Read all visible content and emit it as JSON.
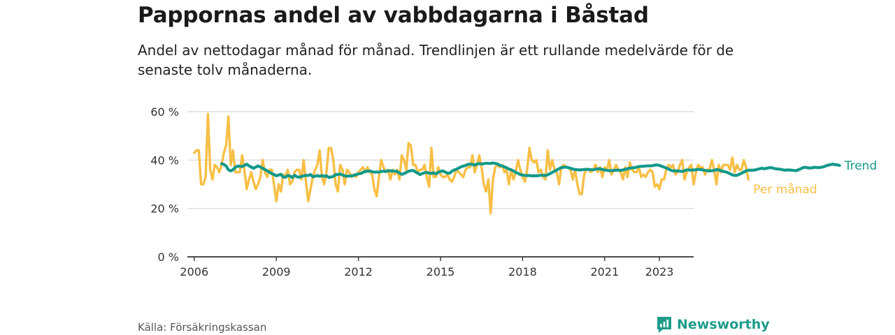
{
  "header": {
    "title": "Pappornas andel av vabbdagarna i Båstad",
    "subtitle": "Andel av nettodagar månad för månad. Trendlinjen är ett rullande medelvärde för de senaste tolv månaderna."
  },
  "footer": {
    "source": "Källa: Försäkringskassan",
    "brand": "Newsworthy"
  },
  "colors": {
    "monthly": "#f7bf45",
    "trend": "#13998a",
    "grid": "#d6d6d6",
    "axis": "#333333",
    "brand": "#1e9c8a"
  },
  "chart_data": {
    "type": "line",
    "y_ticks": [
      "0 %",
      "20 %",
      "40 %",
      "60 %"
    ],
    "y_tick_values": [
      0,
      20,
      40,
      60
    ],
    "x_ticks": [
      "2006",
      "2009",
      "2012",
      "2015",
      "2018",
      "2021",
      "2023"
    ],
    "x_tick_values": [
      "2006-01",
      "2009-01",
      "2012-01",
      "2015-01",
      "2018-01",
      "2021-01",
      "2023-01"
    ],
    "x_range": [
      "2005-10",
      "2024-04"
    ],
    "ylim": [
      0,
      60
    ],
    "grid": true,
    "series": [
      {
        "name": "Per månad",
        "start": "2006-01",
        "values": [
          43,
          44,
          44,
          30,
          30,
          33,
          59,
          36,
          32,
          38,
          37,
          35,
          38,
          43,
          46,
          58,
          38,
          44,
          35,
          35,
          35,
          42,
          36,
          28,
          32,
          35,
          31,
          28,
          30,
          33,
          40,
          35,
          33,
          36,
          36,
          30,
          23,
          30,
          27,
          34,
          33,
          36,
          30,
          31,
          35,
          36,
          36,
          32,
          40,
          31,
          23,
          28,
          33,
          36,
          38,
          44,
          33,
          30,
          35,
          45,
          45,
          40,
          30,
          27,
          38,
          36,
          30,
          36,
          35,
          33,
          34,
          33,
          35,
          36,
          37,
          35,
          37,
          35,
          34,
          28,
          25,
          33,
          40,
          37,
          35,
          36,
          32,
          36,
          34,
          36,
          32,
          42,
          40,
          36,
          47,
          46,
          38,
          38,
          35,
          36,
          36,
          38,
          33,
          29,
          45,
          33,
          33,
          37,
          34,
          33,
          33,
          34,
          32,
          31,
          33,
          36,
          35,
          34,
          33,
          36,
          37,
          37,
          42,
          35,
          38,
          42,
          37,
          30,
          27,
          32,
          18,
          32,
          37,
          38,
          37,
          38,
          35,
          36,
          30,
          36,
          32,
          35,
          40,
          36,
          33,
          31,
          36,
          45,
          40,
          39,
          40,
          35,
          36,
          33,
          32,
          44,
          36,
          40,
          36,
          35,
          30,
          37,
          38,
          37,
          37,
          36,
          32,
          36,
          30,
          26,
          26,
          34,
          36,
          36,
          35,
          36,
          38,
          35,
          37,
          33,
          37,
          36,
          40,
          34,
          36,
          38,
          36,
          35,
          32,
          37,
          33,
          39,
          36,
          35,
          35,
          37,
          33,
          34,
          33,
          35,
          36,
          35,
          29,
          30,
          28,
          32,
          32,
          36,
          38,
          37,
          38,
          34,
          35,
          38,
          40,
          32,
          35,
          37,
          38,
          30,
          35,
          38,
          37,
          37,
          34,
          36,
          36,
          40,
          36,
          30,
          38,
          35,
          38,
          38,
          38,
          36,
          41,
          35,
          38,
          36,
          36,
          40,
          37,
          32
        ]
      },
      {
        "name": "Trend",
        "start": "2007-01",
        "values": [
          38.5,
          38.2,
          37.5,
          36.0,
          35.5,
          36.0,
          37.0,
          37.5,
          37.4,
          37.3,
          37.8,
          38.3,
          37.6,
          37.1,
          36.6,
          37.1,
          37.6,
          37.1,
          36.6,
          36.1,
          35.5,
          35.0,
          34.4,
          34.0,
          33.5,
          33.8,
          34.1,
          33.0,
          32.9,
          33.6,
          33.4,
          32.8,
          33.7,
          33.1,
          32.9,
          33.2,
          33.5,
          33.7,
          33.6,
          34.0,
          33.1,
          33.3,
          33.6,
          33.3,
          33.6,
          33.3,
          33.5,
          32.8,
          33.0,
          33.2,
          34.0,
          34.0,
          34.2,
          33.8,
          33.5,
          33.3,
          33.4,
          33.5,
          33.6,
          34.0,
          34.3,
          34.4,
          34.9,
          35.3,
          35.4,
          35.5,
          35.2,
          35.0,
          35.1,
          35.0,
          35.3,
          35.4,
          35.3,
          35.6,
          35.5,
          35.5,
          35.4,
          35.3,
          34.6,
          34.1,
          34.4,
          34.9,
          35.4,
          35.6,
          35.7,
          35.1,
          34.6,
          34.0,
          34.4,
          34.8,
          34.9,
          34.6,
          34.5,
          34.7,
          34.3,
          34.9,
          35.3,
          35.5,
          35.1,
          34.6,
          34.6,
          35.4,
          35.9,
          36.2,
          36.7,
          37.2,
          37.5,
          37.8,
          38.2,
          38.3,
          38.2,
          37.9,
          38.4,
          38.5,
          38.4,
          38.5,
          38.7,
          38.6,
          38.6,
          38.8,
          38.6,
          38.4,
          37.8,
          37.6,
          37.2,
          36.8,
          36.3,
          36.0,
          35.5,
          34.9,
          34.5,
          34.0,
          33.8,
          33.6,
          33.6,
          33.6,
          33.5,
          33.5,
          33.5,
          33.6,
          33.7,
          33.7,
          33.6,
          33.9,
          34.4,
          34.9,
          35.4,
          35.9,
          36.4,
          36.9,
          37.0,
          37.1,
          36.9,
          36.6,
          36.3,
          36.1,
          36.0,
          35.9,
          36.0,
          36.1,
          36.2,
          36.1,
          36.0,
          36.0,
          36.2,
          36.4,
          36.4,
          36.1,
          35.9,
          35.7,
          35.6,
          35.6,
          35.7,
          35.8,
          35.8,
          35.7,
          35.9,
          36.2,
          36.4,
          36.6,
          36.8,
          36.8,
          37.1,
          37.3,
          37.4,
          37.4,
          37.6,
          37.6,
          37.6,
          37.7,
          37.9,
          38.0,
          37.8,
          37.4,
          37.1,
          36.7,
          36.3,
          35.8,
          35.5,
          35.5,
          35.5,
          35.4,
          35.3,
          35.6,
          35.9,
          35.9,
          35.8,
          35.9,
          36.0,
          36.2,
          36.1,
          35.9,
          35.7,
          35.6,
          35.5,
          35.6,
          35.7,
          36.1,
          35.9,
          35.6,
          35.3,
          35.1,
          34.8,
          34.3,
          33.9,
          33.6,
          33.7,
          34.1,
          34.6,
          35.0,
          35.5,
          35.8,
          35.8,
          35.8,
          35.9,
          36.2,
          36.4,
          36.6,
          36.4,
          36.6,
          36.8,
          36.9,
          36.6,
          36.4,
          36.3,
          36.2,
          36.0,
          35.8,
          35.9,
          35.9,
          35.8,
          35.7,
          35.6,
          36.0,
          36.4,
          36.9,
          37.0,
          36.8,
          36.7,
          36.8,
          37.0,
          36.9,
          36.9,
          37.0,
          37.2,
          37.6,
          37.9,
          38.1,
          38.3,
          38.1,
          38.0,
          37.8
        ]
      }
    ]
  }
}
